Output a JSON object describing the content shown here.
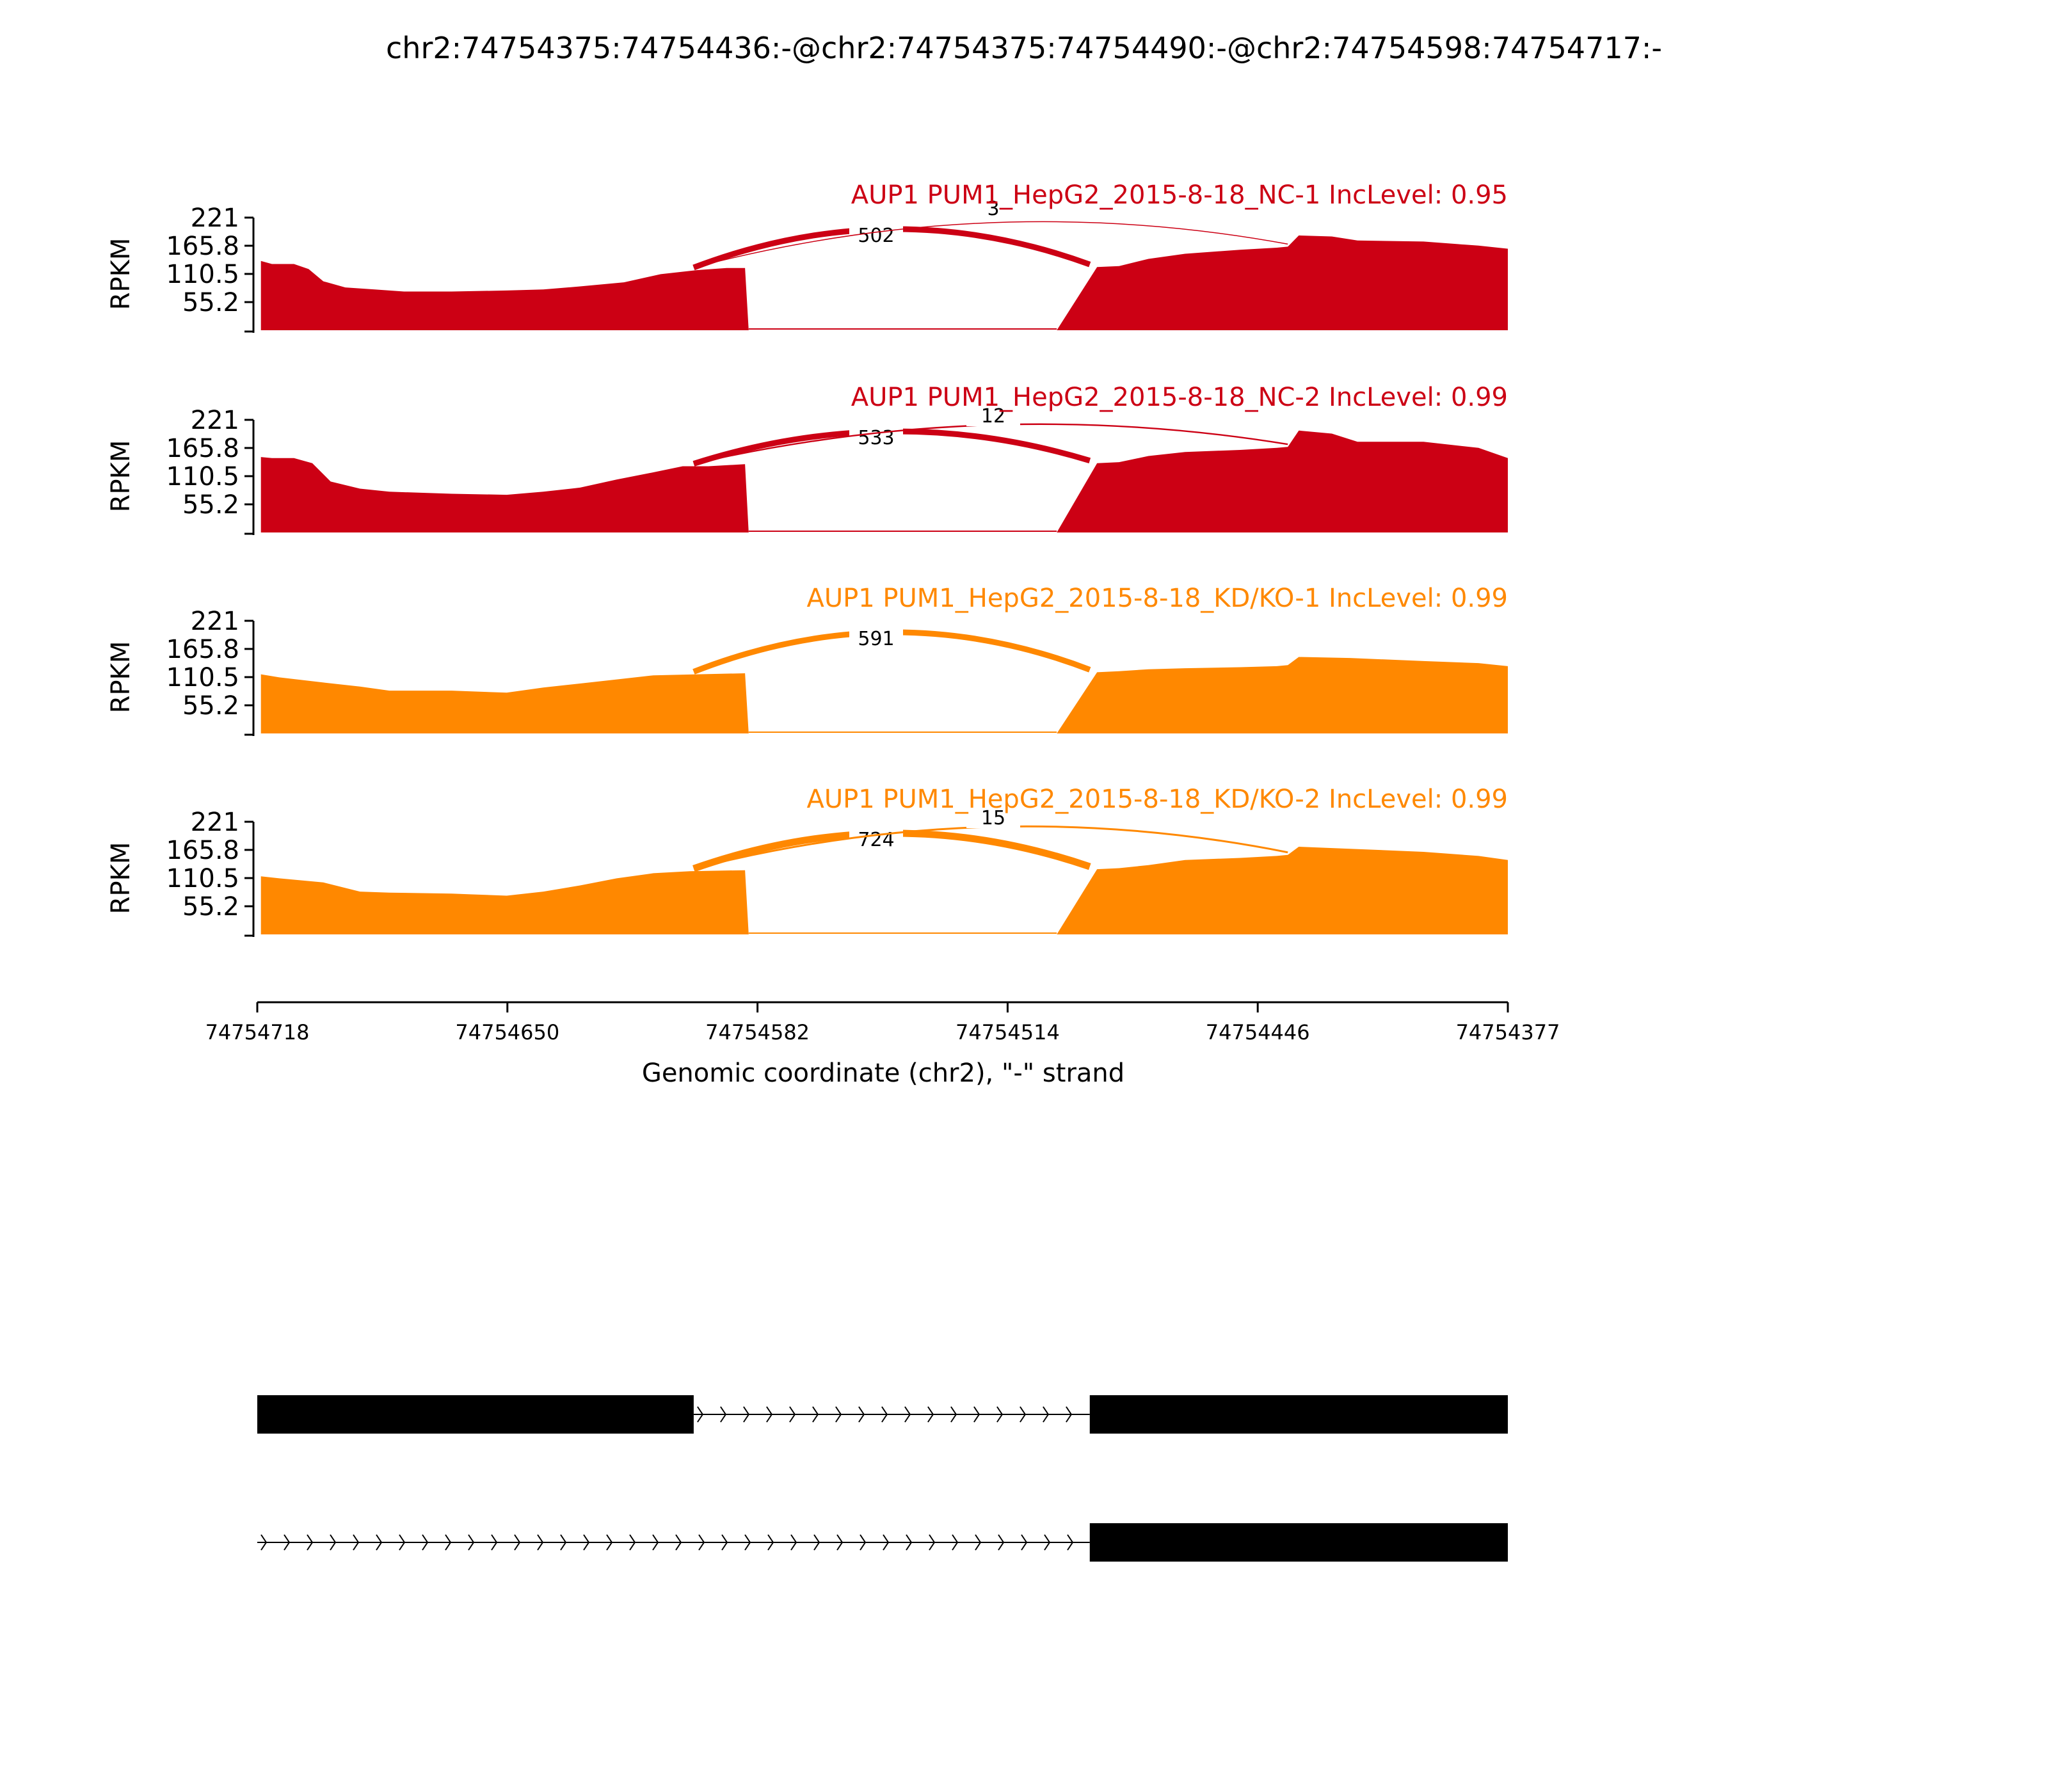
{
  "title": "chr2:74754375:74754436:-@chr2:74754375:74754490:-@chr2:74754598:74754717:-",
  "chart_data": {
    "type": "area",
    "subtype": "sashimi",
    "ylabel": "RPKM",
    "y_ticks": [
      "221",
      "165.8",
      "110.5",
      "55.2"
    ],
    "ylim": [
      0,
      221
    ],
    "xlabel": "Genomic coordinate (chr2), \"-\" strand",
    "x_ticks": [
      "74754718",
      "74754650",
      "74754582",
      "74754514",
      "74754446",
      "74754377"
    ],
    "xlim": [
      74754718,
      74754377
    ],
    "x_direction": "descending",
    "legend": "none",
    "grid": false,
    "panels": [
      {
        "title": "AUP1 PUM1_HepG2_2015-8-18_NC-1 IncLevel: 0.95",
        "color": "#cc0014",
        "junctions": [
          {
            "label": "502",
            "from": 74754599,
            "to": 74754491,
            "side": "upper"
          },
          {
            "label": "3",
            "from": 74754599,
            "to": 74754437,
            "side": "upper"
          }
        ],
        "coverage": [
          [
            74754717,
            136
          ],
          [
            74754714,
            130
          ],
          [
            74754708,
            130
          ],
          [
            74754704,
            120
          ],
          [
            74754700,
            96
          ],
          [
            74754694,
            84
          ],
          [
            74754686,
            80
          ],
          [
            74754678,
            76
          ],
          [
            74754665,
            76
          ],
          [
            74754650,
            78
          ],
          [
            74754640,
            80
          ],
          [
            74754630,
            86
          ],
          [
            74754618,
            94
          ],
          [
            74754608,
            110
          ],
          [
            74754598,
            118
          ],
          [
            74754590,
            122
          ],
          [
            74754585,
            122
          ],
          [
            74754584,
            0
          ],
          [
            74754500,
            0
          ],
          [
            74754489,
            124
          ],
          [
            74754483,
            126
          ],
          [
            74754475,
            140
          ],
          [
            74754465,
            150
          ],
          [
            74754450,
            158
          ],
          [
            74754440,
            162
          ],
          [
            74754437,
            164
          ],
          [
            74754434,
            186
          ],
          [
            74754425,
            184
          ],
          [
            74754418,
            176
          ],
          [
            74754400,
            174
          ],
          [
            74754385,
            166
          ],
          [
            74754377,
            160
          ]
        ]
      },
      {
        "title": "AUP1 PUM1_HepG2_2015-8-18_NC-2 IncLevel: 0.99",
        "color": "#cc0014",
        "junctions": [
          {
            "label": "533",
            "from": 74754599,
            "to": 74754491,
            "side": "upper"
          },
          {
            "label": "12",
            "from": 74754599,
            "to": 74754437,
            "side": "upper"
          }
        ],
        "coverage": [
          [
            74754717,
            148
          ],
          [
            74754714,
            146
          ],
          [
            74754708,
            146
          ],
          [
            74754703,
            136
          ],
          [
            74754698,
            100
          ],
          [
            74754690,
            86
          ],
          [
            74754682,
            80
          ],
          [
            74754665,
            76
          ],
          [
            74754650,
            74
          ],
          [
            74754640,
            80
          ],
          [
            74754630,
            88
          ],
          [
            74754620,
            104
          ],
          [
            74754610,
            118
          ],
          [
            74754602,
            130
          ],
          [
            74754595,
            130
          ],
          [
            74754585,
            134
          ],
          [
            74754584,
            0
          ],
          [
            74754500,
            0
          ],
          [
            74754489,
            136
          ],
          [
            74754483,
            138
          ],
          [
            74754475,
            150
          ],
          [
            74754465,
            158
          ],
          [
            74754450,
            162
          ],
          [
            74754440,
            166
          ],
          [
            74754437,
            168
          ],
          [
            74754434,
            200
          ],
          [
            74754425,
            194
          ],
          [
            74754418,
            178
          ],
          [
            74754400,
            178
          ],
          [
            74754385,
            166
          ],
          [
            74754377,
            146
          ]
        ]
      },
      {
        "title": "AUP1 PUM1_HepG2_2015-8-18_KD/KO-1 IncLevel: 0.99",
        "color": "#ff8800",
        "junctions": [
          {
            "label": "591",
            "from": 74754599,
            "to": 74754491,
            "side": "upper"
          }
        ],
        "coverage": [
          [
            74754717,
            116
          ],
          [
            74754712,
            110
          ],
          [
            74754700,
            100
          ],
          [
            74754690,
            92
          ],
          [
            74754682,
            84
          ],
          [
            74754665,
            84
          ],
          [
            74754650,
            80
          ],
          [
            74754640,
            90
          ],
          [
            74754630,
            98
          ],
          [
            74754620,
            106
          ],
          [
            74754610,
            114
          ],
          [
            74754598,
            116
          ],
          [
            74754585,
            118
          ],
          [
            74754584,
            0
          ],
          [
            74754500,
            0
          ],
          [
            74754489,
            120
          ],
          [
            74754483,
            122
          ],
          [
            74754475,
            126
          ],
          [
            74754465,
            128
          ],
          [
            74754450,
            130
          ],
          [
            74754440,
            132
          ],
          [
            74754437,
            134
          ],
          [
            74754434,
            150
          ],
          [
            74754420,
            148
          ],
          [
            74754400,
            142
          ],
          [
            74754385,
            138
          ],
          [
            74754377,
            132
          ]
        ]
      },
      {
        "title": "AUP1 PUM1_HepG2_2015-8-18_KD/KO-2 IncLevel: 0.99",
        "color": "#ff8800",
        "junctions": [
          {
            "label": "724",
            "from": 74754599,
            "to": 74754491,
            "side": "upper"
          },
          {
            "label": "15",
            "from": 74754599,
            "to": 74754437,
            "side": "upper"
          }
        ],
        "coverage": [
          [
            74754717,
            114
          ],
          [
            74754712,
            110
          ],
          [
            74754700,
            102
          ],
          [
            74754690,
            84
          ],
          [
            74754682,
            82
          ],
          [
            74754665,
            80
          ],
          [
            74754650,
            76
          ],
          [
            74754640,
            84
          ],
          [
            74754630,
            96
          ],
          [
            74754620,
            110
          ],
          [
            74754610,
            120
          ],
          [
            74754600,
            124
          ],
          [
            74754585,
            126
          ],
          [
            74754584,
            0
          ],
          [
            74754500,
            0
          ],
          [
            74754489,
            128
          ],
          [
            74754483,
            130
          ],
          [
            74754475,
            136
          ],
          [
            74754465,
            146
          ],
          [
            74754450,
            150
          ],
          [
            74754440,
            154
          ],
          [
            74754437,
            156
          ],
          [
            74754434,
            172
          ],
          [
            74754420,
            168
          ],
          [
            74754400,
            162
          ],
          [
            74754385,
            154
          ],
          [
            74754377,
            146
          ]
        ]
      }
    ],
    "gene_models": [
      {
        "exons": [
          [
            74754718,
            74754599
          ],
          [
            74754491,
            74754377
          ]
        ],
        "intron": [
          74754599,
          74754491
        ]
      },
      {
        "exons": [
          [
            74754491,
            74754377
          ]
        ],
        "intron": [
          74754718,
          74754491
        ]
      }
    ]
  }
}
